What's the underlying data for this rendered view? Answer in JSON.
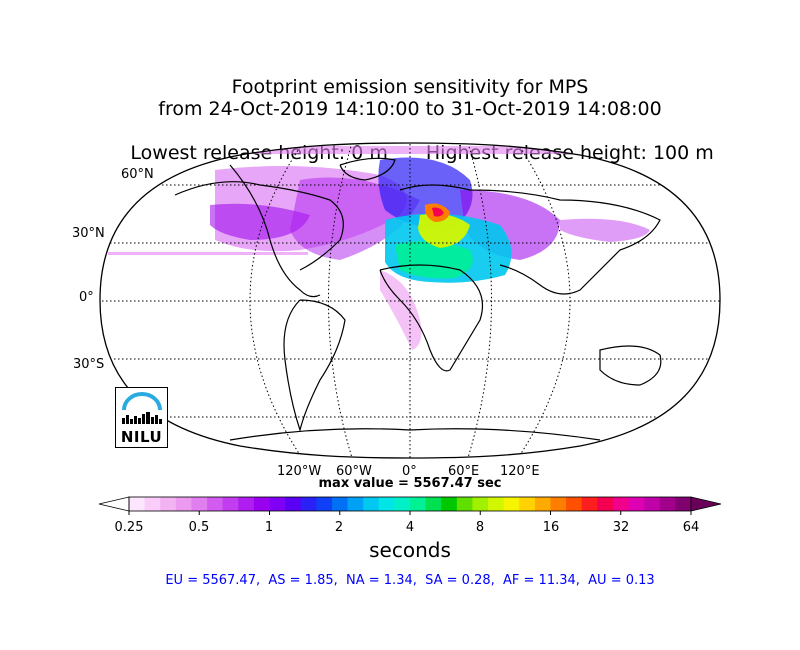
{
  "title": {
    "line1": "Footprint emission sensitivity for MPS",
    "line2": "from 24-Oct-2019 14:10:00 to 31-Oct-2019 14:08:00",
    "line3_left": "Lowest release height: 0 m",
    "line3_right": "Highest release height: 100 m"
  },
  "map": {
    "lat_labels": [
      "60°N",
      "30°N",
      "0°",
      "30°S"
    ],
    "lon_labels": [
      "120°W",
      "60°W",
      "0°",
      "60°E",
      "120°E"
    ],
    "max_value_text": "max value = 5567.47 sec"
  },
  "colorbar": {
    "tick_labels": [
      "0.25",
      "0.5",
      "1",
      "2",
      "4",
      "8",
      "16",
      "32",
      "64"
    ],
    "unit": "seconds",
    "colors": [
      "#fde6fd",
      "#f9ccf9",
      "#f3b3f3",
      "#ec99f0",
      "#e27ff0",
      "#d35cf0",
      "#c23cf0",
      "#ae1ef0",
      "#9a00ee",
      "#8000f5",
      "#5a00f5",
      "#2b20f5",
      "#1040f5",
      "#0070f5",
      "#00a0f5",
      "#00c8f0",
      "#00e6e6",
      "#00f0c8",
      "#00f096",
      "#00e050",
      "#00c800",
      "#60e000",
      "#a0f000",
      "#d2f500",
      "#f5f500",
      "#ffd200",
      "#ffaa00",
      "#ff7d00",
      "#ff5000",
      "#ff1e1e",
      "#f50050",
      "#f0008c",
      "#e000b4",
      "#c000a8",
      "#a0008c",
      "#800070"
    ],
    "under_color": "#ffffff",
    "over_color": "#6a005a"
  },
  "regions_text": "EU = 5567.47,  AS = 1.85,  NA = 1.34,  SA = 0.28,  AF = 11.34,  AU = 0.13",
  "logo": {
    "text": "NILU",
    "arc_color": "#29abe2"
  }
}
